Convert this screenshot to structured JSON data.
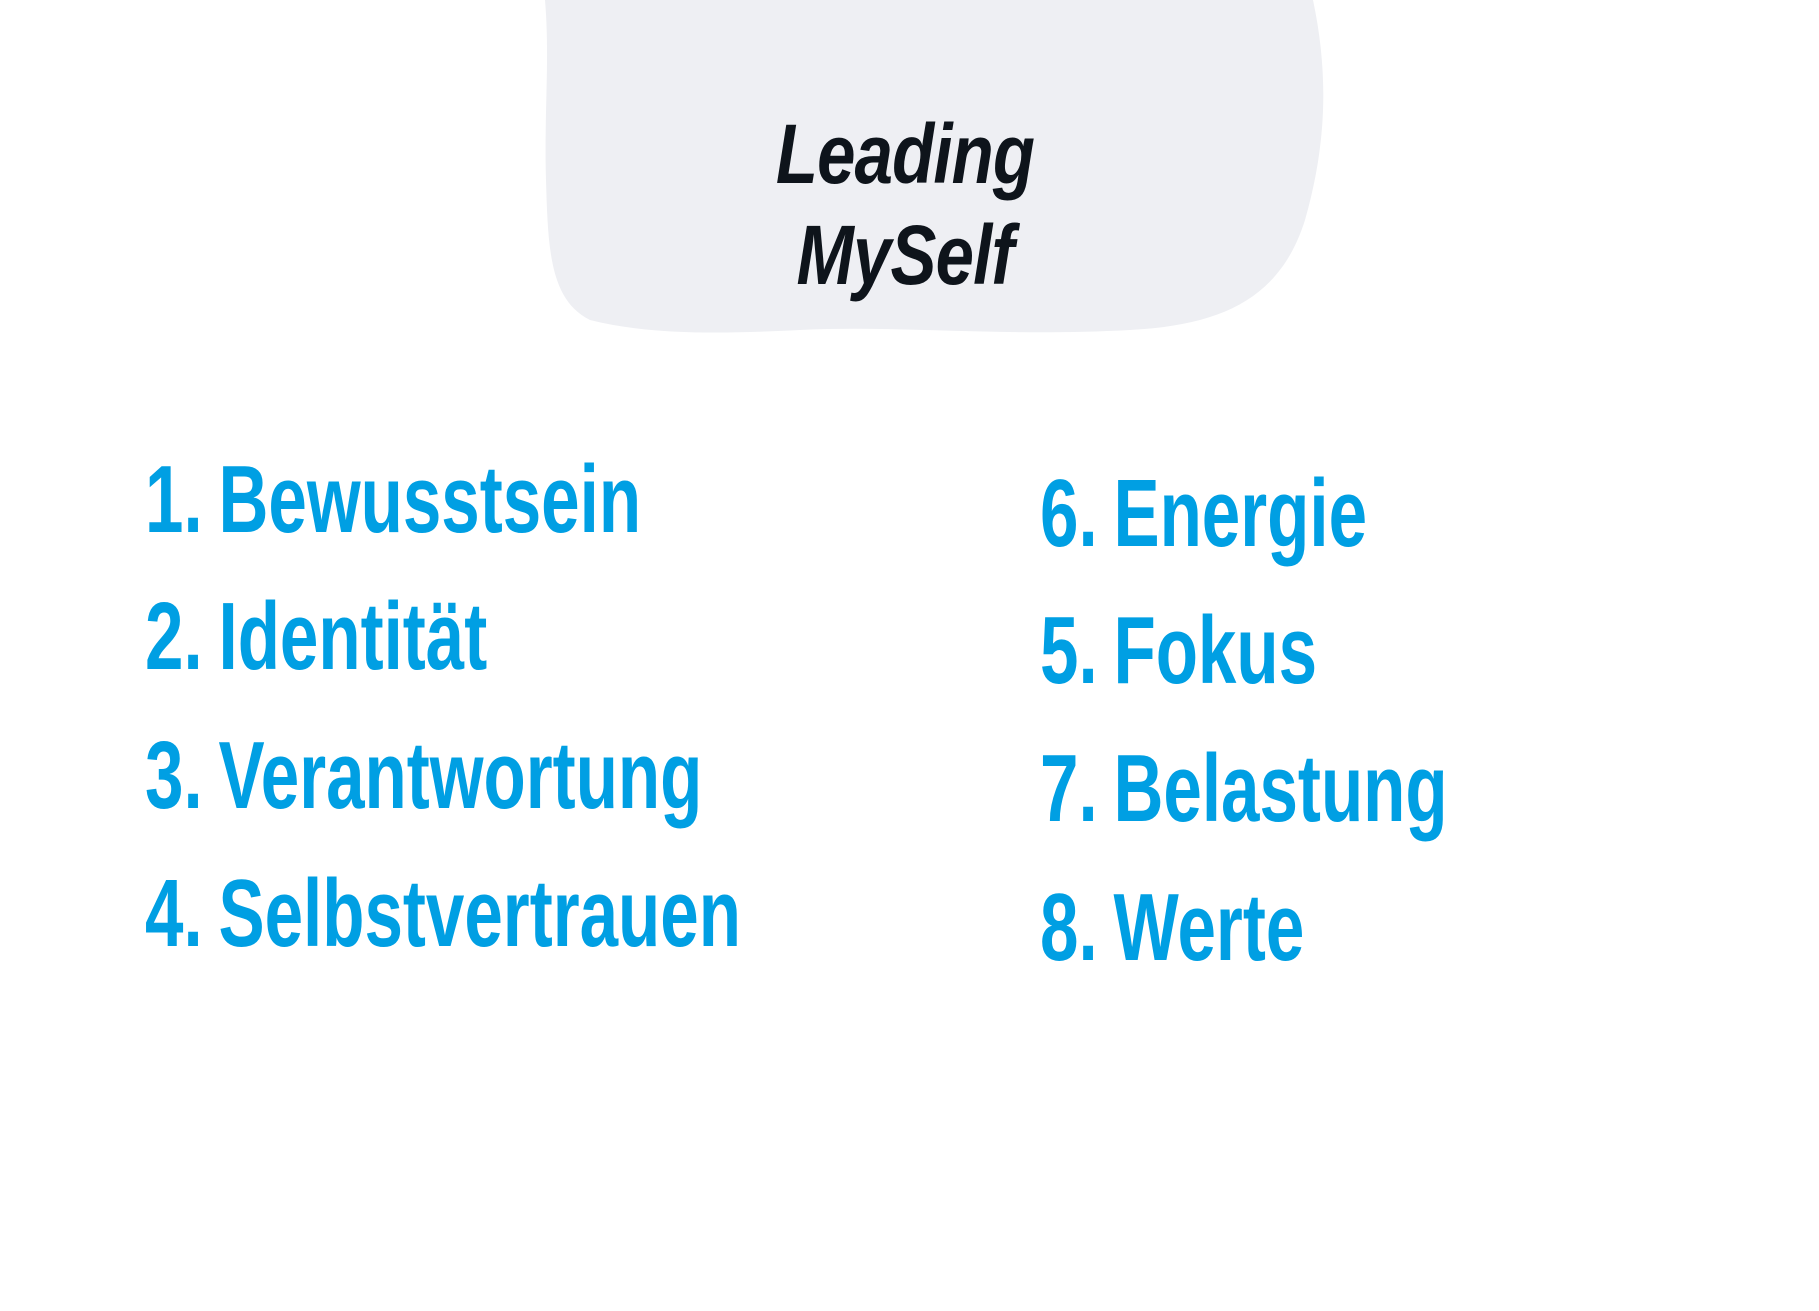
{
  "header": {
    "title_line1": "Leading",
    "title_line2": "MySelf"
  },
  "colors": {
    "accent": "#009fe3",
    "title": "#0e141b",
    "blob": "#eeeff3"
  },
  "left_list": [
    {
      "number": "1.",
      "label": "Bewusstsein"
    },
    {
      "number": "2.",
      "label": "Identität"
    },
    {
      "number": "3.",
      "label": "Verantwortung"
    },
    {
      "number": "4.",
      "label": "Selbstvertrauen"
    }
  ],
  "right_list": [
    {
      "number": "6.",
      "label": "Energie"
    },
    {
      "number": "5.",
      "label": "Fokus"
    },
    {
      "number": "7.",
      "label": "Belastung"
    },
    {
      "number": "8.",
      "label": "Werte"
    }
  ]
}
